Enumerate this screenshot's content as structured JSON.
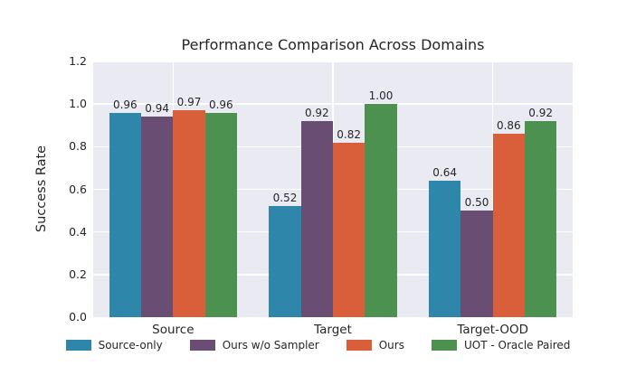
{
  "chart_data": {
    "type": "bar",
    "title": "Performance Comparison Across Domains",
    "xlabel": "",
    "ylabel": "Success Rate",
    "categories": [
      "Source",
      "Target",
      "Target-OOD"
    ],
    "series": [
      {
        "name": "Source-only",
        "color": "#2E86AB",
        "values": [
          0.96,
          0.52,
          0.64
        ]
      },
      {
        "name": "Ours w/o Sampler",
        "color": "#6A4D72",
        "values": [
          0.94,
          0.92,
          0.5
        ]
      },
      {
        "name": "Ours",
        "color": "#D95F3B",
        "values": [
          0.97,
          0.82,
          0.86
        ]
      },
      {
        "name": "UOT - Oracle Paired",
        "color": "#4D9150",
        "values": [
          0.96,
          1.0,
          0.92
        ]
      }
    ],
    "ylim": [
      0.0,
      1.2
    ],
    "yticks": [
      0.0,
      0.2,
      0.4,
      0.6,
      0.8,
      1.0,
      1.2
    ],
    "ytick_labels": [
      "0.0",
      "0.2",
      "0.4",
      "0.6",
      "0.8",
      "1.0",
      "1.2"
    ],
    "bar_labels_visible": true,
    "bar_label_decimals": 2,
    "grid": "on",
    "legend_position": "bottom",
    "colors": {
      "plot_background": "#EAEAF2",
      "gridline": "#FFFFFF",
      "text": "#262626",
      "figure_background": "#FFFFFF"
    }
  }
}
